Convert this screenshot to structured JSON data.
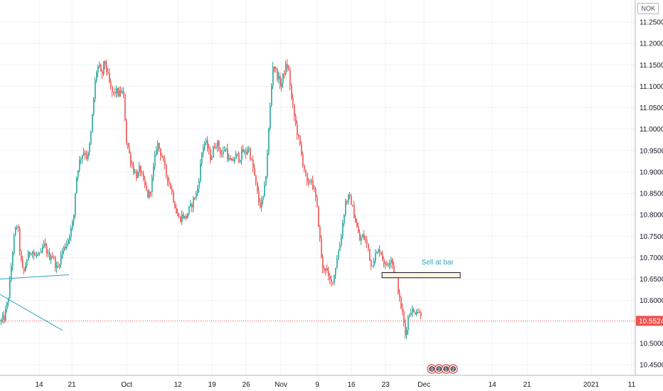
{
  "currency": "NOK",
  "colors": {
    "up": "#26a69a",
    "down": "#ef5350",
    "grid": "#eef1f6",
    "axis_text": "#131722",
    "price_line": "#ef5350",
    "price_badge_bg": "#ef5350",
    "annotation_text": "#2aa3c4",
    "trendline": "#2aa3c4",
    "box_border": "#131722",
    "box_fill": "#fff3e0"
  },
  "price_tag": "10.55240",
  "annotation": {
    "text": "Sell at bar",
    "price_low": 10.653,
    "price_high": 10.665
  },
  "event_markers": [
    3,
    2,
    1,
    2
  ],
  "chart_data": {
    "type": "candlestick",
    "title": "",
    "y_range": [
      10.42,
      11.32
    ],
    "y_ticks": [
      "11.25000",
      "11.20000",
      "11.15000",
      "11.10000",
      "11.05000",
      "11.00000",
      "10.95000",
      "10.90000",
      "10.85000",
      "10.80000",
      "10.75000",
      "10.70000",
      "10.65000",
      "10.60000",
      "10.55000",
      "10.50000",
      "10.45000"
    ],
    "x_ticks": [
      "14",
      "21",
      "Oct",
      "12",
      "19",
      "26",
      "Nov",
      "9",
      "16",
      "23",
      "Dec",
      "14",
      "21",
      "2021",
      "11"
    ],
    "last_price": 10.5524,
    "trendlines": [
      {
        "x0": -1,
        "y0": 10.65,
        "x1": 97,
        "y1": 10.66
      },
      {
        "x0": -1,
        "y0": 10.615,
        "x1": 88,
        "y1": 10.53
      }
    ],
    "path_points": [
      [
        0,
        10.55
      ],
      [
        5,
        10.56
      ],
      [
        8,
        10.58
      ],
      [
        12,
        10.62
      ],
      [
        16,
        10.7
      ],
      [
        20,
        10.76
      ],
      [
        24,
        10.78
      ],
      [
        28,
        10.7
      ],
      [
        32,
        10.66
      ],
      [
        36,
        10.69
      ],
      [
        40,
        10.71
      ],
      [
        44,
        10.72
      ],
      [
        48,
        10.7
      ],
      [
        52,
        10.71
      ],
      [
        56,
        10.7
      ],
      [
        60,
        10.73
      ],
      [
        64,
        10.72
      ],
      [
        68,
        10.7
      ],
      [
        72,
        10.71
      ],
      [
        76,
        10.69
      ],
      [
        80,
        10.67
      ],
      [
        84,
        10.7
      ],
      [
        88,
        10.72
      ],
      [
        92,
        10.73
      ],
      [
        96,
        10.75
      ],
      [
        100,
        10.77
      ],
      [
        103,
        10.8
      ],
      [
        106,
        10.88
      ],
      [
        110,
        10.92
      ],
      [
        114,
        10.94
      ],
      [
        118,
        10.95
      ],
      [
        122,
        10.93
      ],
      [
        126,
        10.97
      ],
      [
        130,
        11.05
      ],
      [
        134,
        11.13
      ],
      [
        138,
        11.15
      ],
      [
        142,
        11.12
      ],
      [
        146,
        11.16
      ],
      [
        150,
        11.13
      ],
      [
        154,
        11.1
      ],
      [
        158,
        11.08
      ],
      [
        162,
        11.09
      ],
      [
        166,
        11.08
      ],
      [
        170,
        11.09
      ],
      [
        174,
        11.07
      ],
      [
        176,
        10.98
      ],
      [
        180,
        10.95
      ],
      [
        184,
        10.92
      ],
      [
        188,
        10.9
      ],
      [
        192,
        10.89
      ],
      [
        196,
        10.91
      ],
      [
        200,
        10.88
      ],
      [
        204,
        10.86
      ],
      [
        208,
        10.84
      ],
      [
        212,
        10.87
      ],
      [
        216,
        10.92
      ],
      [
        220,
        10.97
      ],
      [
        224,
        10.95
      ],
      [
        228,
        10.93
      ],
      [
        232,
        10.9
      ],
      [
        236,
        10.88
      ],
      [
        240,
        10.86
      ],
      [
        244,
        10.83
      ],
      [
        248,
        10.8
      ],
      [
        252,
        10.79
      ],
      [
        256,
        10.8
      ],
      [
        260,
        10.79
      ],
      [
        264,
        10.81
      ],
      [
        268,
        10.82
      ],
      [
        272,
        10.84
      ],
      [
        276,
        10.85
      ],
      [
        280,
        10.9
      ],
      [
        284,
        10.96
      ],
      [
        288,
        10.97
      ],
      [
        292,
        10.95
      ],
      [
        296,
        10.93
      ],
      [
        300,
        10.96
      ],
      [
        304,
        10.97
      ],
      [
        308,
        10.95
      ],
      [
        312,
        10.94
      ],
      [
        316,
        10.96
      ],
      [
        320,
        10.93
      ],
      [
        324,
        10.92
      ],
      [
        328,
        10.93
      ],
      [
        332,
        10.94
      ],
      [
        336,
        10.93
      ],
      [
        340,
        10.95
      ],
      [
        344,
        10.94
      ],
      [
        348,
        10.96
      ],
      [
        352,
        10.93
      ],
      [
        356,
        10.9
      ],
      [
        360,
        10.86
      ],
      [
        364,
        10.82
      ],
      [
        368,
        10.83
      ],
      [
        372,
        10.87
      ],
      [
        376,
        10.97
      ],
      [
        380,
        11.08
      ],
      [
        383,
        11.15
      ],
      [
        386,
        11.14
      ],
      [
        390,
        11.12
      ],
      [
        394,
        11.1
      ],
      [
        398,
        11.13
      ],
      [
        402,
        11.15
      ],
      [
        406,
        11.13
      ],
      [
        408,
        11.08
      ],
      [
        412,
        11.04
      ],
      [
        416,
        11.0
      ],
      [
        420,
        10.97
      ],
      [
        424,
        10.93
      ],
      [
        428,
        10.9
      ],
      [
        432,
        10.86
      ],
      [
        436,
        10.89
      ],
      [
        440,
        10.86
      ],
      [
        444,
        10.83
      ],
      [
        447,
        10.78
      ],
      [
        450,
        10.72
      ],
      [
        453,
        10.67
      ],
      [
        457,
        10.68
      ],
      [
        461,
        10.65
      ],
      [
        465,
        10.64
      ],
      [
        469,
        10.66
      ],
      [
        473,
        10.7
      ],
      [
        477,
        10.73
      ],
      [
        481,
        10.78
      ],
      [
        485,
        10.83
      ],
      [
        489,
        10.84
      ],
      [
        493,
        10.83
      ],
      [
        497,
        10.8
      ],
      [
        501,
        10.77
      ],
      [
        505,
        10.74
      ],
      [
        509,
        10.75
      ],
      [
        513,
        10.74
      ],
      [
        517,
        10.72
      ],
      [
        521,
        10.68
      ],
      [
        525,
        10.7
      ],
      [
        529,
        10.71
      ],
      [
        533,
        10.72
      ],
      [
        537,
        10.7
      ],
      [
        541,
        10.68
      ],
      [
        545,
        10.69
      ],
      [
        549,
        10.7
      ],
      [
        553,
        10.67
      ],
      [
        557,
        10.65
      ],
      [
        561,
        10.6
      ],
      [
        565,
        10.57
      ],
      [
        569,
        10.52
      ],
      [
        573,
        10.56
      ],
      [
        577,
        10.58
      ],
      [
        581,
        10.57
      ],
      [
        585,
        10.58
      ],
      [
        589,
        10.57
      ],
      [
        592,
        10.57
      ]
    ]
  }
}
